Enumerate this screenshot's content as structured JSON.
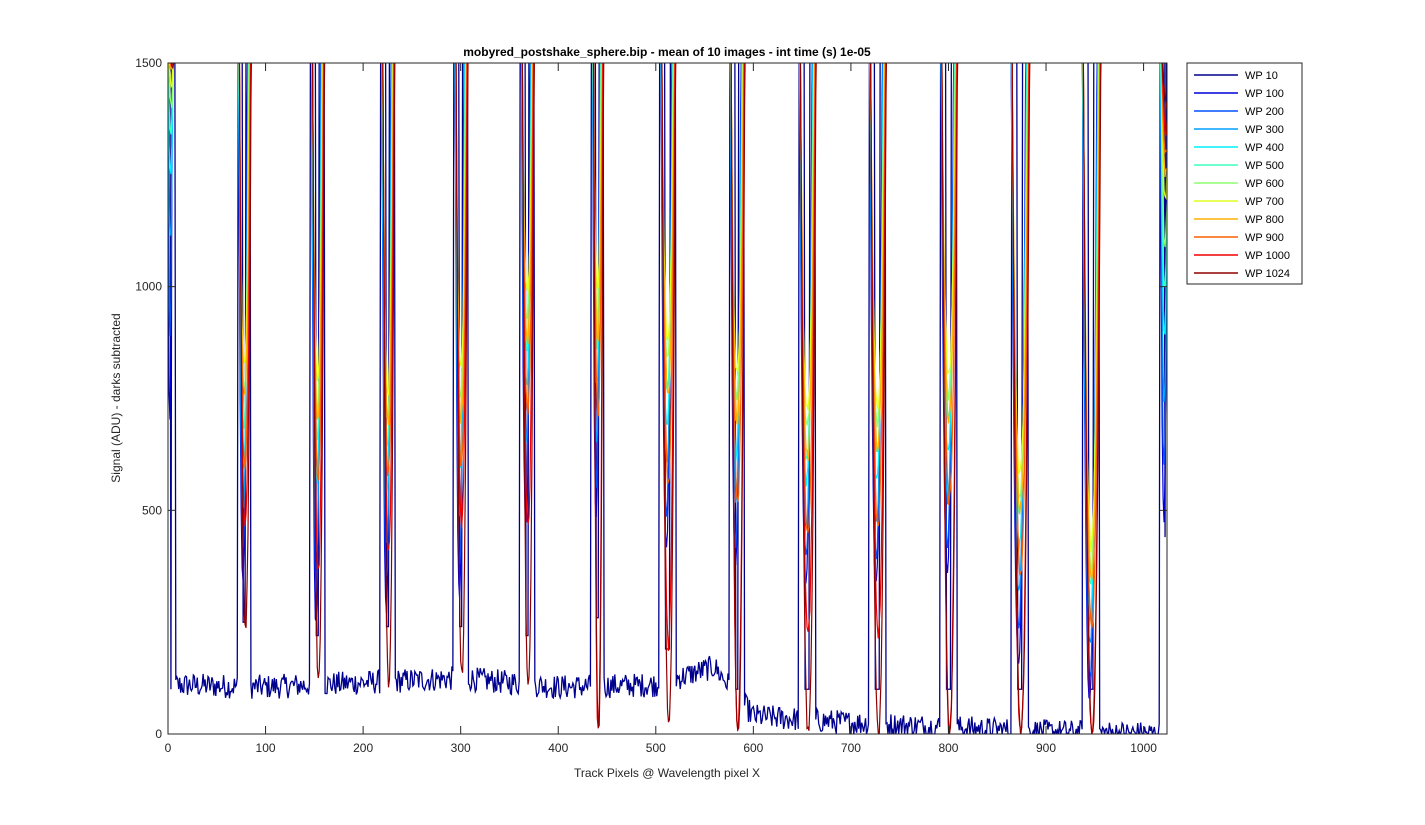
{
  "chart_data": {
    "type": "line",
    "title": "mobyred_postshake_sphere.bip - mean of 10 images - int time (s) 1e-05",
    "xlabel": "Track Pixels @ Wavelength pixel X",
    "ylabel": "Signal (ADU) - darks subtracted",
    "xlim": [
      0,
      1024
    ],
    "ylim": [
      0,
      1500
    ],
    "xticks": [
      0,
      100,
      200,
      300,
      400,
      500,
      600,
      700,
      800,
      900,
      1000
    ],
    "yticks": [
      0,
      500,
      1000,
      1500
    ],
    "xtick_labels": [
      "0",
      "100",
      "200",
      "300",
      "400",
      "500",
      "600",
      "700",
      "800",
      "900",
      "1000"
    ],
    "ytick_labels": [
      "0",
      "500",
      "1000",
      "1500"
    ],
    "grid": false,
    "legend_position": "outside-top-right",
    "peak_centers": [
      3,
      78,
      153,
      225,
      300,
      368,
      440,
      512,
      583,
      655,
      727,
      800,
      873,
      946,
      1022
    ],
    "background_level": [
      [
        0,
        110
      ],
      [
        100,
        105
      ],
      [
        200,
        115
      ],
      [
        300,
        125
      ],
      [
        400,
        105
      ],
      [
        500,
        110
      ],
      [
        560,
        150
      ],
      [
        600,
        40
      ],
      [
        700,
        25
      ],
      [
        800,
        15
      ],
      [
        900,
        5
      ],
      [
        1024,
        0
      ]
    ],
    "series": [
      {
        "name": "WP 10",
        "color": "#00008f",
        "peak_widths": [
          2,
          6,
          8,
          8,
          8,
          8,
          6,
          10,
          8,
          10,
          10,
          10,
          10,
          10,
          4
        ],
        "min_values": [
          0,
          150,
          120,
          140,
          140,
          120,
          160,
          90,
          0,
          0,
          0,
          0,
          0,
          0,
          340
        ]
      },
      {
        "name": "WP 100",
        "color": "#0000d9",
        "peak_widths": [
          2,
          6,
          6,
          6,
          6,
          6,
          4,
          8,
          8,
          10,
          10,
          10,
          12,
          12,
          4
        ],
        "min_values": [
          700,
          350,
          240,
          280,
          310,
          480,
          470,
          420,
          370,
          340,
          330,
          370,
          170,
          80,
          480
        ]
      },
      {
        "name": "WP 200",
        "color": "#0050ff",
        "peak_widths": [
          2,
          6,
          6,
          6,
          6,
          6,
          4,
          8,
          8,
          10,
          10,
          10,
          12,
          12,
          4
        ],
        "min_values": [
          900,
          420,
          320,
          340,
          380,
          560,
          560,
          500,
          430,
          400,
          400,
          430,
          240,
          130,
          600
        ]
      },
      {
        "name": "WP 300",
        "color": "#00a0ff",
        "peak_widths": [
          2,
          6,
          6,
          6,
          6,
          6,
          4,
          8,
          8,
          10,
          10,
          10,
          12,
          12,
          4
        ],
        "min_values": [
          1100,
          500,
          420,
          420,
          480,
          650,
          650,
          600,
          520,
          470,
          470,
          520,
          330,
          200,
          750
        ]
      },
      {
        "name": "WP 400",
        "color": "#00f0ff",
        "peak_widths": [
          2,
          6,
          6,
          6,
          6,
          6,
          4,
          8,
          8,
          10,
          10,
          10,
          12,
          12,
          4
        ],
        "min_values": [
          1250,
          600,
          560,
          540,
          600,
          780,
          780,
          700,
          620,
          560,
          560,
          620,
          420,
          270,
          900
        ]
      },
      {
        "name": "WP 500",
        "color": "#40ffbf",
        "peak_widths": [
          2,
          6,
          6,
          6,
          6,
          6,
          4,
          8,
          8,
          10,
          10,
          10,
          12,
          12,
          4
        ],
        "min_values": [
          1350,
          680,
          660,
          640,
          700,
          870,
          870,
          780,
          700,
          620,
          630,
          700,
          490,
          330,
          1000
        ]
      },
      {
        "name": "WP 600",
        "color": "#90ff70",
        "peak_widths": [
          2,
          6,
          6,
          6,
          6,
          6,
          4,
          8,
          8,
          10,
          10,
          10,
          12,
          12,
          4
        ],
        "min_values": [
          1400,
          760,
          730,
          700,
          760,
          930,
          930,
          840,
          760,
          680,
          690,
          760,
          540,
          380,
          1100
        ]
      },
      {
        "name": "WP 700",
        "color": "#e0ff20",
        "peak_widths": [
          2,
          6,
          6,
          6,
          6,
          6,
          4,
          8,
          8,
          10,
          10,
          10,
          12,
          12,
          4
        ],
        "min_values": [
          1450,
          820,
          790,
          760,
          820,
          980,
          980,
          880,
          800,
          720,
          730,
          800,
          580,
          420,
          1200
        ]
      },
      {
        "name": "WP 800",
        "color": "#ffb000",
        "peak_widths": [
          2,
          6,
          6,
          6,
          6,
          6,
          4,
          8,
          8,
          10,
          10,
          10,
          12,
          12,
          4
        ],
        "min_values": [
          1480,
          760,
          700,
          700,
          700,
          880,
          880,
          760,
          700,
          620,
          640,
          700,
          500,
          350,
          1250
        ]
      },
      {
        "name": "WP 900",
        "color": "#ff6000",
        "peak_widths": [
          2,
          6,
          6,
          6,
          6,
          6,
          4,
          8,
          8,
          10,
          10,
          10,
          12,
          12,
          4
        ],
        "min_values": [
          1490,
          600,
          560,
          580,
          600,
          720,
          720,
          560,
          520,
          440,
          460,
          520,
          360,
          240,
          1300
        ]
      },
      {
        "name": "WP 1000",
        "color": "#f00000",
        "peak_widths": [
          2,
          6,
          6,
          6,
          6,
          6,
          4,
          8,
          8,
          10,
          10,
          10,
          12,
          12,
          4
        ],
        "min_values": [
          1495,
          460,
          360,
          400,
          470,
          460,
          0,
          200,
          0,
          220,
          220,
          0,
          0,
          0,
          1350
        ]
      },
      {
        "name": "WP 1024",
        "color": "#900000",
        "peak_widths": [
          2,
          6,
          6,
          6,
          6,
          6,
          4,
          8,
          8,
          10,
          10,
          10,
          12,
          12,
          4
        ],
        "min_values": [
          1500,
          230,
          120,
          110,
          130,
          100,
          0,
          20,
          0,
          0,
          0,
          0,
          0,
          0,
          1400
        ]
      }
    ]
  }
}
